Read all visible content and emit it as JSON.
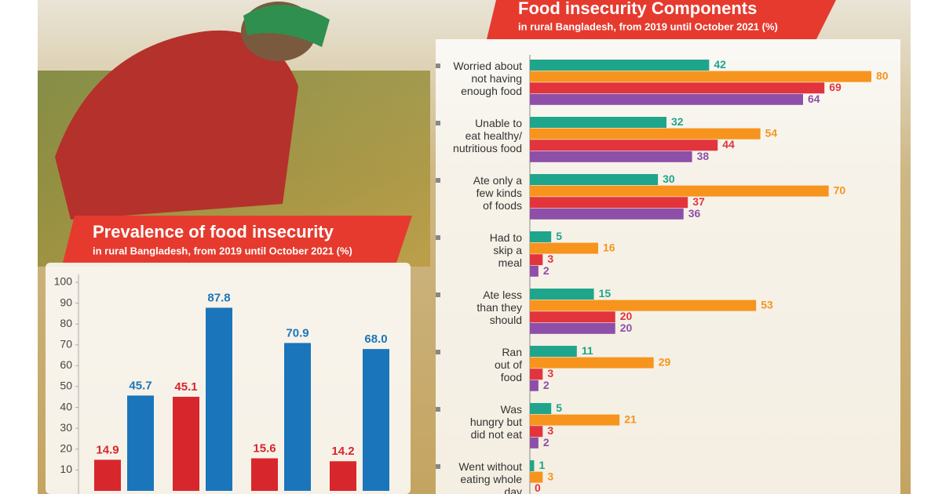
{
  "chart_data": [
    {
      "type": "bar",
      "orientation": "vertical",
      "title": "Prevalence of food insecurity",
      "subtitle": "in rural Bangladesh, from 2019 until October 2021 (%)",
      "categories": [
        null,
        null,
        null,
        null
      ],
      "series": [
        {
          "color": "#d7262c",
          "values": [
            14.9,
            45.1,
            15.6,
            14.2
          ]
        },
        {
          "color": "#1b75bb",
          "values": [
            45.7,
            87.8,
            70.9,
            68.0
          ],
          "value_labels": [
            "45.7",
            "87.8",
            "70.9",
            "68.0"
          ]
        }
      ],
      "ylim": [
        0,
        100
      ],
      "yticks": [
        10,
        20,
        30,
        40,
        50,
        60,
        70,
        80,
        90,
        100
      ]
    },
    {
      "type": "bar",
      "orientation": "horizontal",
      "title": "Food insecurity Components",
      "subtitle": "in rural Bangladesh, from 2019 until October 2021 (%)",
      "categories": [
        "Worried about\nnot having\nenough food",
        "Unable to\neat healthy/\nnutritious food",
        "Ate only a\nfew kinds\nof foods",
        "Had to\nskip a\nmeal",
        "Ate less\nthan they\nshould",
        "Ran\nout of\nfood",
        "Was\nhungry but\ndid not eat",
        "Went without\neating whole\nday"
      ],
      "series": [
        {
          "color": "#1fa58b",
          "values": [
            42,
            32,
            30,
            5,
            15,
            11,
            5,
            1
          ]
        },
        {
          "color": "#f7941d",
          "values": [
            80,
            54,
            70,
            16,
            53,
            29,
            21,
            3
          ]
        },
        {
          "color": "#e2343c",
          "values": [
            69,
            44,
            37,
            3,
            20,
            3,
            3,
            0
          ]
        },
        {
          "color": "#8e4fa8",
          "values": [
            64,
            38,
            36,
            2,
            20,
            2,
            2,
            null
          ]
        }
      ],
      "xlim": [
        0,
        80
      ]
    }
  ]
}
